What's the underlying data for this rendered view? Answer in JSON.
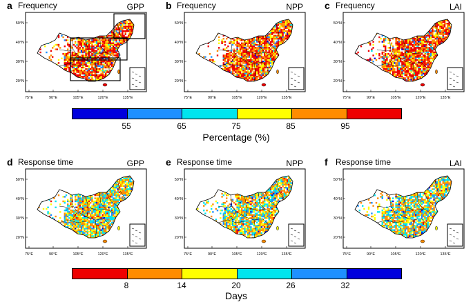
{
  "panels": [
    {
      "letter": "a",
      "title": "Frequency",
      "variable": "GPP",
      "kind": "frequency"
    },
    {
      "letter": "b",
      "title": "Frequency",
      "variable": "NPP",
      "kind": "frequency"
    },
    {
      "letter": "c",
      "title": "Frequency",
      "variable": "LAI",
      "kind": "frequency"
    },
    {
      "letter": "d",
      "title": "Response time",
      "variable": "GPP",
      "kind": "response"
    },
    {
      "letter": "e",
      "title": "Response time",
      "variable": "NPP",
      "kind": "response"
    },
    {
      "letter": "f",
      "title": "Response time",
      "variable": "LAI",
      "kind": "response"
    }
  ],
  "lat_labels": [
    "50°N",
    "40°N",
    "30°N",
    "20°N"
  ],
  "lon_labels": [
    "75°E",
    "90°E",
    "105°E",
    "120°E",
    "135°E"
  ],
  "colorbar_top": {
    "colors": [
      "#0000dd",
      "#1e90ff",
      "#00e5ee",
      "#ffff00",
      "#ff8c00",
      "#ee0000"
    ],
    "ticks": [
      "55",
      "65",
      "75",
      "85",
      "95"
    ],
    "title": "Percentage (%)"
  },
  "colorbar_bottom": {
    "colors": [
      "#ee0000",
      "#ff8c00",
      "#ffff00",
      "#00e5ee",
      "#1e90ff",
      "#0000dd"
    ],
    "ticks": [
      "8",
      "14",
      "20",
      "26",
      "32"
    ],
    "title": "Days"
  },
  "map_palettes": {
    "frequency": [
      "#ee0000",
      "#ff8c00",
      "#ffff00",
      "#1e90ff",
      "#0000dd",
      "#00e5ee"
    ],
    "response": [
      "#ff8c00",
      "#ffff00",
      "#00e5ee",
      "#1e90ff",
      "#ee0000",
      "#0000dd"
    ]
  }
}
